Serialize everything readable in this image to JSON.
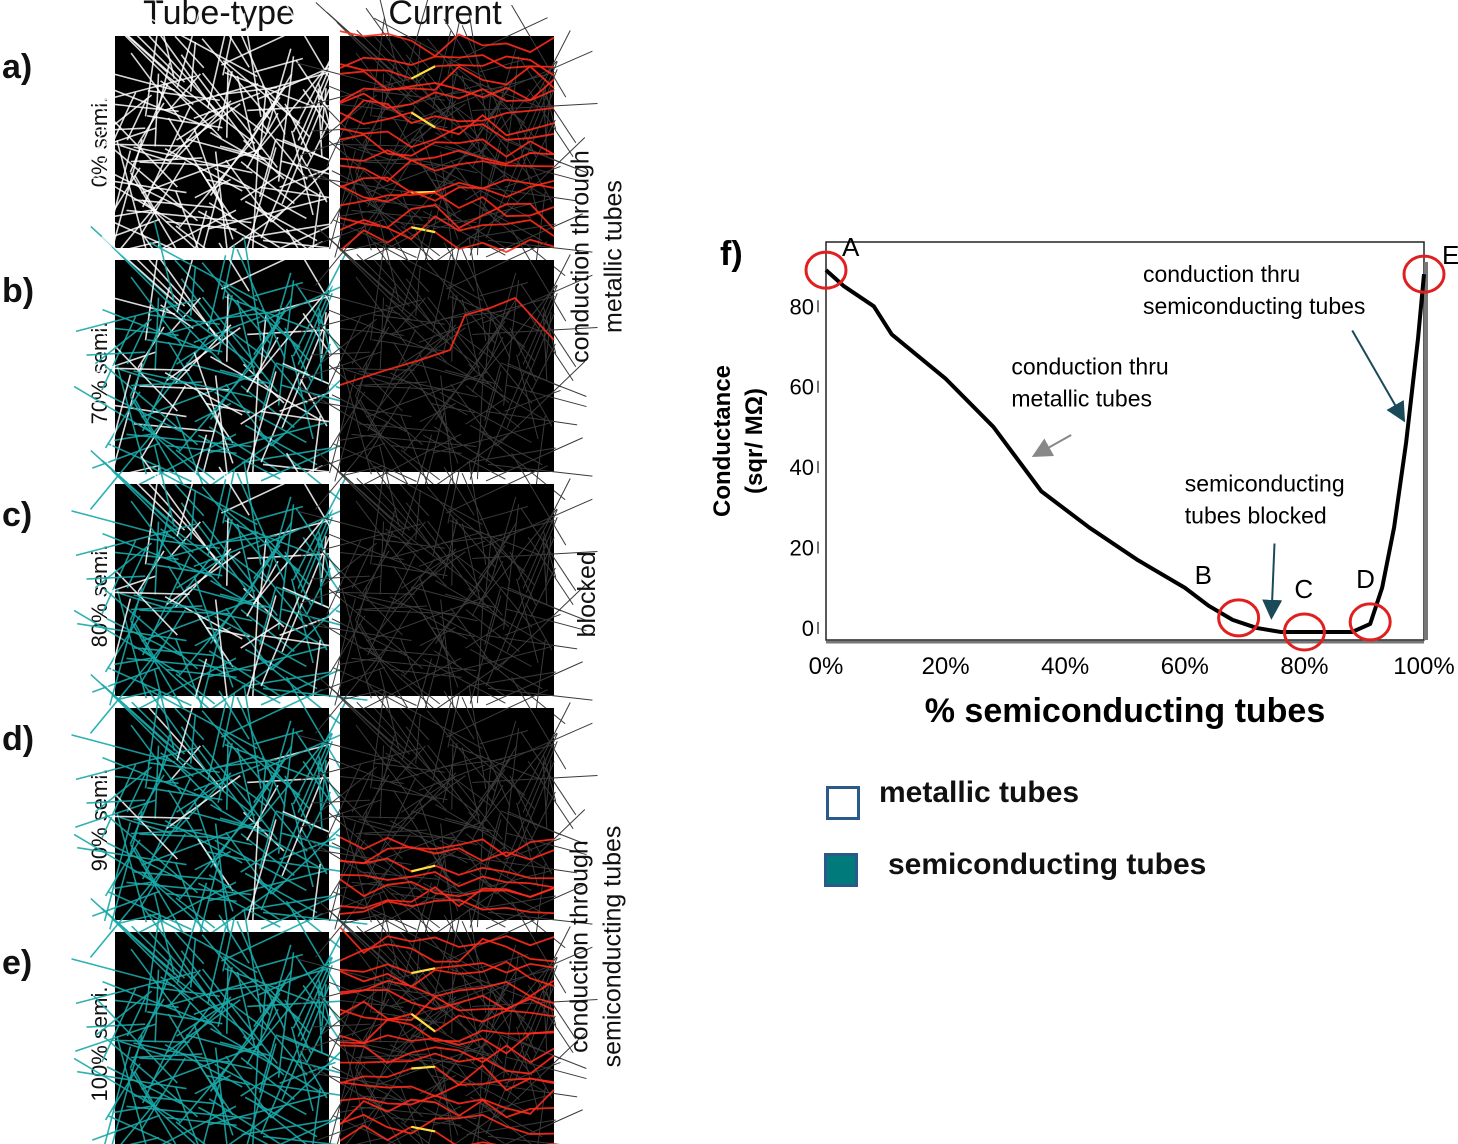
{
  "columns": {
    "tube_type": "Tube-type",
    "current": "Current"
  },
  "rows": [
    {
      "letter": "a)",
      "label": "0% semi.",
      "semi_fraction": 0.0,
      "current_level": "high"
    },
    {
      "letter": "b)",
      "label": "70% semi.",
      "semi_fraction": 0.7,
      "current_level": "low"
    },
    {
      "letter": "c)",
      "label": "80% semi.",
      "semi_fraction": 0.8,
      "current_level": "none"
    },
    {
      "letter": "d)",
      "label": "90% semi.",
      "semi_fraction": 0.9,
      "current_level": "medium"
    },
    {
      "letter": "e)",
      "label": "100% semi.",
      "semi_fraction": 1.0,
      "current_level": "high"
    }
  ],
  "side_notes": {
    "metallic": [
      "conduction through",
      "metallic tubes"
    ],
    "blocked": "blocked",
    "semi": [
      "conduction through",
      "semiconducting tubes"
    ]
  },
  "colors": {
    "metallic": "#ffffff",
    "semiconducting": "#1aa7a7",
    "current": "#ff2a1a",
    "hot": "#ffe040",
    "circle": "#e02020",
    "legend_semi_fill": "#007a7a",
    "legend_border": "#2a5a8a"
  },
  "legend": {
    "metallic": "metallic tubes",
    "semiconducting": "semiconducting tubes"
  },
  "chart_data": {
    "type": "line",
    "panel_label": "f)",
    "xlabel": "% semiconducting tubes",
    "ylabel": "Conductance",
    "ylabel_units": "(sqr/ MΩ)",
    "xlim": [
      0,
      100
    ],
    "ylim": [
      -3,
      96
    ],
    "x_ticks": [
      "0%",
      "20%",
      "40%",
      "60%",
      "80%",
      "100%"
    ],
    "x_tick_values": [
      0,
      20,
      40,
      60,
      80,
      100
    ],
    "y_ticks": [
      "0",
      "20",
      "40",
      "60",
      "80"
    ],
    "y_tick_values": [
      0,
      20,
      40,
      60,
      80
    ],
    "x": [
      0,
      3,
      8,
      11,
      20,
      28,
      36,
      44,
      52,
      60,
      64,
      68,
      72,
      76,
      80,
      84,
      88,
      91,
      93,
      95,
      97,
      99,
      100
    ],
    "y": [
      89,
      85,
      80,
      73,
      62,
      50,
      34,
      25,
      17,
      10,
      5.5,
      2,
      0,
      -1,
      -1,
      -1,
      -1,
      1,
      10,
      25,
      46,
      72,
      88
    ],
    "points": [
      {
        "label": "A",
        "x": 0,
        "y": 89
      },
      {
        "label": "B",
        "x": 69,
        "y": 2.5
      },
      {
        "label": "C",
        "x": 80,
        "y": -1
      },
      {
        "label": "D",
        "x": 91,
        "y": 1.5
      },
      {
        "label": "E",
        "x": 100,
        "y": 88
      }
    ],
    "annotations": [
      {
        "id": "metal",
        "lines": [
          "conduction thru",
          "metallic tubes"
        ],
        "arrow_to": [
          35,
          43
        ]
      },
      {
        "id": "block",
        "lines": [
          "semiconducting",
          "tubes blocked"
        ],
        "arrow_to": [
          74.5,
          3
        ]
      },
      {
        "id": "semi",
        "lines": [
          "conduction thru",
          "semiconducting tubes"
        ],
        "arrow_to": [
          96.5,
          52
        ]
      }
    ]
  }
}
